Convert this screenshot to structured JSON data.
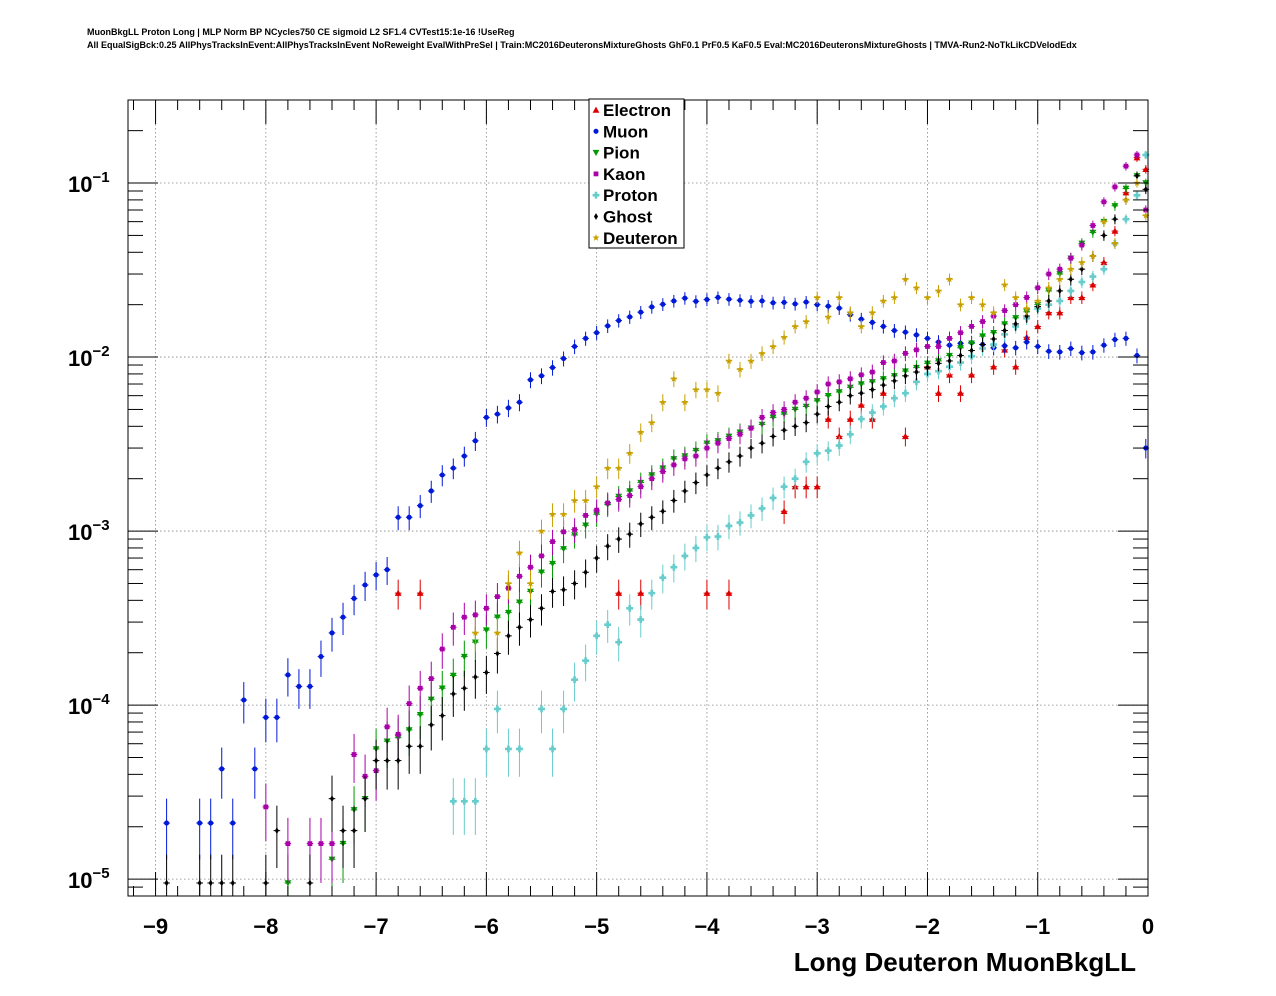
{
  "title_line1": "MuonBkgLL Proton Long | MLP Norm BP NCycles750 CE sigmoid L2 SF1.4 CVTest15:1e-16 !UseReg",
  "title_line2": "All EqualSigBck:0.25 AllPhysTracksInEvent:AllPhysTracksInEvent NoReweight EvalWithPreSel | Train:MC2016DeuteronsMixtureGhosts GhF0.1 PrF0.5 KaF0.5 Eval:MC2016DeuteronsMixtureGhosts | TMVA-Run2-NoTkLikCDVelodEdx",
  "chart_data": {
    "type": "scatter",
    "xlabel": "Long Deuteron MuonBkgLL",
    "ylabel": "",
    "xlim": [
      -9.25,
      0
    ],
    "ylim": [
      8e-06,
      0.3
    ],
    "yscale": "log",
    "grid": true,
    "legend_position": "top-center",
    "x_ticks": [
      {
        "v": -9,
        "label": "−9"
      },
      {
        "v": -8,
        "label": "−8"
      },
      {
        "v": -7,
        "label": "−7"
      },
      {
        "v": -6,
        "label": "−6"
      },
      {
        "v": -5,
        "label": "−5"
      },
      {
        "v": -4,
        "label": "−4"
      },
      {
        "v": -3,
        "label": "−3"
      },
      {
        "v": -2,
        "label": "−2"
      },
      {
        "v": -1,
        "label": "−1"
      },
      {
        "v": 0,
        "label": "0"
      }
    ],
    "y_ticks": [
      {
        "v": 1e-05,
        "base": "10",
        "exp": "−5"
      },
      {
        "v": 0.0001,
        "base": "10",
        "exp": "−4"
      },
      {
        "v": 0.001,
        "base": "10",
        "exp": "−3"
      },
      {
        "v": 0.01,
        "base": "10",
        "exp": "−2"
      },
      {
        "v": 0.1,
        "base": "10",
        "exp": "−1"
      }
    ],
    "series": [
      {
        "name": "Electron",
        "color": "#dd0000",
        "marker": "triangle-up",
        "x": [
          -6.8,
          -6.6,
          -4.8,
          -4.6,
          -4.0,
          -3.8,
          -3.3,
          -3.2,
          -3.1,
          -3.0,
          -2.9,
          -2.8,
          -2.7,
          -2.6,
          -2.5,
          -2.4,
          -2.2,
          -2.0,
          -1.9,
          -1.8,
          -1.7,
          -1.6,
          -1.4,
          -1.3,
          -1.2,
          -1.1,
          -1.0,
          -0.9,
          -0.8,
          -0.7,
          -0.6,
          -0.5,
          -0.4,
          -0.3,
          -0.2,
          -0.1,
          -0.02
        ],
        "y": [
          0.00044,
          0.00044,
          0.00044,
          0.00044,
          0.00044,
          0.00044,
          0.0013,
          0.0018,
          0.0018,
          0.0018,
          0.0044,
          0.0035,
          0.0044,
          0.0053,
          0.0044,
          0.0062,
          0.0035,
          0.0088,
          0.0062,
          0.0079,
          0.0062,
          0.0079,
          0.0088,
          0.011,
          0.0088,
          0.013,
          0.015,
          0.018,
          0.018,
          0.022,
          0.022,
          0.026,
          0.035,
          0.053,
          0.088,
          0.14,
          0.12
        ]
      },
      {
        "name": "Muon",
        "color": "#0018d8",
        "marker": "circle",
        "x": [
          -8.9,
          -8.6,
          -8.5,
          -8.4,
          -8.3,
          -8.2,
          -8.1,
          -8.0,
          -7.9,
          -7.8,
          -7.7,
          -7.6,
          -7.5,
          -7.4,
          -7.3,
          -7.2,
          -7.1,
          -7.0,
          -6.9,
          -6.8,
          -6.7,
          -6.6,
          -6.5,
          -6.4,
          -6.3,
          -6.2,
          -6.1,
          -6.0,
          -5.9,
          -5.8,
          -5.7,
          -5.6,
          -5.5,
          -5.4,
          -5.3,
          -5.2,
          -5.1,
          -5.0,
          -4.9,
          -4.8,
          -4.7,
          -4.6,
          -4.5,
          -4.4,
          -4.3,
          -4.2,
          -4.1,
          -4.0,
          -3.9,
          -3.8,
          -3.7,
          -3.6,
          -3.5,
          -3.4,
          -3.3,
          -3.2,
          -3.1,
          -3.0,
          -2.9,
          -2.8,
          -2.7,
          -2.6,
          -2.5,
          -2.4,
          -2.3,
          -2.2,
          -2.1,
          -2.0,
          -1.9,
          -1.8,
          -1.7,
          -1.6,
          -1.5,
          -1.4,
          -1.3,
          -1.2,
          -1.1,
          -1.0,
          -0.9,
          -0.8,
          -0.7,
          -0.6,
          -0.5,
          -0.4,
          -0.3,
          -0.2,
          -0.1,
          -0.02
        ],
        "y": [
          2.1e-05,
          2.1e-05,
          2.1e-05,
          4.3e-05,
          2.1e-05,
          0.000107,
          4.3e-05,
          8.5e-05,
          8.5e-05,
          0.000149,
          0.000128,
          0.000128,
          0.00019,
          0.00026,
          0.00032,
          0.00041,
          0.00049,
          0.00056,
          0.0006,
          0.0012,
          0.0012,
          0.0014,
          0.0017,
          0.0021,
          0.0023,
          0.0027,
          0.0033,
          0.0045,
          0.0047,
          0.0051,
          0.0055,
          0.0074,
          0.0078,
          0.0087,
          0.0098,
          0.0115,
          0.0128,
          0.0138,
          0.0151,
          0.0162,
          0.017,
          0.0181,
          0.0194,
          0.0201,
          0.021,
          0.0218,
          0.0209,
          0.0214,
          0.022,
          0.0215,
          0.0212,
          0.0209,
          0.021,
          0.0205,
          0.0206,
          0.0202,
          0.0207,
          0.02,
          0.0196,
          0.0191,
          0.0175,
          0.0165,
          0.0158,
          0.015,
          0.0142,
          0.0139,
          0.0134,
          0.0128,
          0.0122,
          0.0117,
          0.012,
          0.0121,
          0.0118,
          0.0113,
          0.0116,
          0.0113,
          0.0122,
          0.0115,
          0.0108,
          0.0107,
          0.0112,
          0.0106,
          0.0107,
          0.0117,
          0.0126,
          0.0128,
          0.0102,
          0.003
        ]
      },
      {
        "name": "Pion",
        "color": "#009900",
        "marker": "triangle-down",
        "x": [
          -7.8,
          -7.4,
          -7.3,
          -7.2,
          -7.1,
          -7.0,
          -6.9,
          -6.8,
          -6.7,
          -6.6,
          -6.5,
          -6.4,
          -6.3,
          -6.2,
          -6.1,
          -6.0,
          -5.9,
          -5.8,
          -5.7,
          -5.6,
          -5.5,
          -5.4,
          -5.3,
          -5.2,
          -5.1,
          -5.0,
          -4.9,
          -4.8,
          -4.7,
          -4.6,
          -4.5,
          -4.4,
          -4.3,
          -4.2,
          -4.1,
          -4.0,
          -3.9,
          -3.8,
          -3.7,
          -3.6,
          -3.5,
          -3.4,
          -3.3,
          -3.2,
          -3.1,
          -3.0,
          -2.9,
          -2.8,
          -2.7,
          -2.6,
          -2.5,
          -2.4,
          -2.3,
          -2.2,
          -2.1,
          -2.0,
          -1.9,
          -1.8,
          -1.7,
          -1.6,
          -1.5,
          -1.4,
          -1.3,
          -1.2,
          -1.1,
          -1.0,
          -0.9,
          -0.8,
          -0.7,
          -0.6,
          -0.5,
          -0.4,
          -0.3,
          -0.2,
          -0.1,
          -0.02
        ],
        "y": [
          9.5e-06,
          1.3e-05,
          1.6e-05,
          2.5e-05,
          2.9e-05,
          5.6e-05,
          6.2e-05,
          6.5e-05,
          7.2e-05,
          8.8e-05,
          0.000108,
          0.000125,
          0.000148,
          0.00019,
          0.00023,
          0.00027,
          0.00032,
          0.00034,
          0.00039,
          0.00045,
          0.00058,
          0.00065,
          0.00079,
          0.00095,
          0.00108,
          0.00125,
          0.00142,
          0.00158,
          0.0017,
          0.0019,
          0.0021,
          0.0023,
          0.0026,
          0.0027,
          0.0029,
          0.0032,
          0.0033,
          0.0035,
          0.0037,
          0.0039,
          0.0041,
          0.0045,
          0.0047,
          0.005,
          0.0052,
          0.0056,
          0.006,
          0.0063,
          0.0067,
          0.007,
          0.0072,
          0.0075,
          0.0078,
          0.0083,
          0.0087,
          0.0092,
          0.0095,
          0.0102,
          0.0113,
          0.012,
          0.0132,
          0.0138,
          0.0155,
          0.0168,
          0.0182,
          0.02,
          0.024,
          0.03,
          0.037,
          0.045,
          0.052,
          0.06,
          0.074,
          0.093,
          0.11,
          0.1
        ]
      },
      {
        "name": "Kaon",
        "color": "#aa00aa",
        "marker": "square",
        "x": [
          -8.0,
          -7.8,
          -7.6,
          -7.5,
          -7.4,
          -7.2,
          -7.1,
          -7.0,
          -6.9,
          -6.8,
          -6.7,
          -6.6,
          -6.5,
          -6.4,
          -6.3,
          -6.2,
          -6.1,
          -6.0,
          -5.9,
          -5.8,
          -5.7,
          -5.6,
          -5.5,
          -5.4,
          -5.3,
          -5.2,
          -5.1,
          -5.0,
          -4.9,
          -4.8,
          -4.7,
          -4.6,
          -4.5,
          -4.4,
          -4.3,
          -4.2,
          -4.1,
          -4.0,
          -3.9,
          -3.8,
          -3.7,
          -3.6,
          -3.5,
          -3.4,
          -3.3,
          -3.2,
          -3.1,
          -3.0,
          -2.9,
          -2.8,
          -2.7,
          -2.6,
          -2.5,
          -2.4,
          -2.3,
          -2.2,
          -2.1,
          -2.0,
          -1.9,
          -1.8,
          -1.7,
          -1.6,
          -1.5,
          -1.4,
          -1.3,
          -1.2,
          -1.1,
          -1.0,
          -0.9,
          -0.8,
          -0.7,
          -0.6,
          -0.5,
          -0.4,
          -0.3,
          -0.2,
          -0.1,
          -0.02
        ],
        "y": [
          2.6e-05,
          1.6e-05,
          1.6e-05,
          1.6e-05,
          1.6e-05,
          5.2e-05,
          3.9e-05,
          4.2e-05,
          7.5e-05,
          6.8e-05,
          0.000102,
          0.000125,
          0.000142,
          0.00021,
          0.00028,
          0.00032,
          0.00033,
          0.00036,
          0.00042,
          0.00047,
          0.00055,
          0.00062,
          0.00072,
          0.00087,
          0.00099,
          0.00102,
          0.00123,
          0.00132,
          0.00145,
          0.00152,
          0.0016,
          0.0018,
          0.002,
          0.0022,
          0.0024,
          0.0026,
          0.0027,
          0.003,
          0.0032,
          0.0034,
          0.0036,
          0.0039,
          0.0045,
          0.0048,
          0.005,
          0.0055,
          0.0058,
          0.0063,
          0.007,
          0.0072,
          0.0075,
          0.0079,
          0.0082,
          0.0093,
          0.0095,
          0.0105,
          0.011,
          0.0115,
          0.0115,
          0.0128,
          0.0138,
          0.015,
          0.016,
          0.0172,
          0.0185,
          0.02,
          0.022,
          0.025,
          0.03,
          0.032,
          0.037,
          0.044,
          0.057,
          0.078,
          0.095,
          0.125,
          0.145,
          0.07
        ]
      },
      {
        "name": "Proton",
        "color": "#66cccc",
        "marker": "plus",
        "x": [
          -6.3,
          -6.2,
          -6.1,
          -6.0,
          -5.9,
          -5.8,
          -5.7,
          -5.5,
          -5.4,
          -5.3,
          -5.2,
          -5.1,
          -5.0,
          -4.9,
          -4.8,
          -4.7,
          -4.6,
          -4.5,
          -4.4,
          -4.3,
          -4.2,
          -4.1,
          -4.0,
          -3.9,
          -3.8,
          -3.7,
          -3.6,
          -3.5,
          -3.4,
          -3.3,
          -3.2,
          -3.1,
          -3.0,
          -2.9,
          -2.8,
          -2.7,
          -2.6,
          -2.5,
          -2.4,
          -2.3,
          -2.2,
          -2.1,
          -2.0,
          -1.9,
          -1.8,
          -1.7,
          -1.6,
          -1.5,
          -1.4,
          -1.3,
          -1.2,
          -1.1,
          -1.0,
          -0.9,
          -0.8,
          -0.7,
          -0.6,
          -0.5,
          -0.4,
          -0.3,
          -0.2,
          -0.1,
          -0.02
        ],
        "y": [
          2.8e-05,
          2.8e-05,
          2.8e-05,
          5.6e-05,
          9.5e-05,
          5.6e-05,
          5.6e-05,
          9.5e-05,
          5.6e-05,
          9.5e-05,
          0.00014,
          0.00018,
          0.00025,
          0.00029,
          0.00023,
          0.00036,
          0.00031,
          0.00044,
          0.00054,
          0.00062,
          0.00072,
          0.0008,
          0.00092,
          0.00093,
          0.00107,
          0.00112,
          0.00123,
          0.00135,
          0.00155,
          0.0018,
          0.002,
          0.0025,
          0.0028,
          0.0029,
          0.0031,
          0.0036,
          0.0044,
          0.0048,
          0.0052,
          0.0058,
          0.0062,
          0.0072,
          0.008,
          0.0083,
          0.0088,
          0.0093,
          0.0101,
          0.0112,
          0.0118,
          0.0135,
          0.015,
          0.0167,
          0.019,
          0.02,
          0.021,
          0.024,
          0.027,
          0.029,
          0.032,
          0.045,
          0.062,
          0.085,
          0.145
        ]
      },
      {
        "name": "Ghost",
        "color": "#000000",
        "marker": "diamond",
        "x": [
          -8.9,
          -8.6,
          -8.5,
          -8.4,
          -8.3,
          -8.0,
          -7.9,
          -7.6,
          -7.4,
          -7.3,
          -7.2,
          -7.1,
          -7.0,
          -6.9,
          -6.8,
          -6.7,
          -6.6,
          -6.5,
          -6.4,
          -6.3,
          -6.2,
          -6.1,
          -6.0,
          -5.9,
          -5.8,
          -5.7,
          -5.6,
          -5.5,
          -5.4,
          -5.3,
          -5.2,
          -5.1,
          -5.0,
          -4.9,
          -4.8,
          -4.7,
          -4.6,
          -4.5,
          -4.4,
          -4.3,
          -4.2,
          -4.1,
          -4.0,
          -3.9,
          -3.8,
          -3.7,
          -3.6,
          -3.5,
          -3.4,
          -3.3,
          -3.2,
          -3.1,
          -3.0,
          -2.9,
          -2.8,
          -2.7,
          -2.6,
          -2.5,
          -2.4,
          -2.3,
          -2.2,
          -2.1,
          -2.0,
          -1.9,
          -1.8,
          -1.7,
          -1.6,
          -1.5,
          -1.4,
          -1.3,
          -1.2,
          -1.1,
          -1.0,
          -0.9,
          -0.8,
          -0.7,
          -0.6,
          -0.5,
          -0.4,
          -0.3,
          -0.2,
          -0.1,
          -0.02
        ],
        "y": [
          9.5e-06,
          9.5e-06,
          9.5e-06,
          9.5e-06,
          9.5e-06,
          9.5e-06,
          1.9e-05,
          9.5e-06,
          2.9e-05,
          1.9e-05,
          1.9e-05,
          2.9e-05,
          4.8e-05,
          4.8e-05,
          4.8e-05,
          5.8e-05,
          5.8e-05,
          7.7e-05,
          8.7e-05,
          0.000116,
          0.000125,
          0.000145,
          0.000154,
          0.000198,
          0.00025,
          0.00028,
          0.00031,
          0.00036,
          0.00045,
          0.00046,
          0.0005,
          0.00058,
          0.0007,
          0.00082,
          0.0009,
          0.00096,
          0.0011,
          0.0012,
          0.0013,
          0.0015,
          0.0017,
          0.0019,
          0.0021,
          0.0023,
          0.0025,
          0.0027,
          0.003,
          0.0032,
          0.0035,
          0.0038,
          0.004,
          0.0042,
          0.0047,
          0.0052,
          0.0055,
          0.006,
          0.0062,
          0.0065,
          0.0069,
          0.0073,
          0.0078,
          0.0082,
          0.0087,
          0.0092,
          0.0095,
          0.0102,
          0.0109,
          0.0118,
          0.0127,
          0.0142,
          0.0155,
          0.0172,
          0.0195,
          0.021,
          0.024,
          0.028,
          0.032,
          0.038,
          0.05,
          0.062,
          0.08,
          0.11,
          0.092
        ]
      },
      {
        "name": "Deuteron",
        "color": "#c8a000",
        "marker": "star",
        "x": [
          -6.1,
          -5.9,
          -5.8,
          -5.7,
          -5.6,
          -5.5,
          -5.4,
          -5.3,
          -5.2,
          -5.1,
          -5.0,
          -4.9,
          -4.8,
          -4.7,
          -4.6,
          -4.5,
          -4.4,
          -4.3,
          -4.2,
          -4.1,
          -4.0,
          -3.9,
          -3.8,
          -3.7,
          -3.6,
          -3.5,
          -3.4,
          -3.3,
          -3.2,
          -3.1,
          -3.0,
          -2.9,
          -2.8,
          -2.7,
          -2.6,
          -2.5,
          -2.4,
          -2.3,
          -2.2,
          -2.1,
          -2.0,
          -1.9,
          -1.8,
          -1.7,
          -1.6,
          -1.5,
          -1.4,
          -1.3,
          -1.2,
          -1.1,
          -1.0,
          -0.9,
          -0.8,
          -0.7,
          -0.6,
          -0.5,
          -0.4,
          -0.3,
          -0.2,
          -0.1,
          -0.02
        ],
        "y": [
          0.00026,
          0.00026,
          0.0005,
          0.00075,
          0.0005,
          0.001,
          0.00125,
          0.00125,
          0.0015,
          0.0015,
          0.0018,
          0.0023,
          0.0023,
          0.0028,
          0.0037,
          0.0042,
          0.0055,
          0.0075,
          0.0055,
          0.0065,
          0.0065,
          0.0062,
          0.0095,
          0.0085,
          0.0095,
          0.0105,
          0.0115,
          0.013,
          0.015,
          0.016,
          0.022,
          0.017,
          0.022,
          0.018,
          0.015,
          0.018,
          0.021,
          0.022,
          0.028,
          0.025,
          0.022,
          0.024,
          0.028,
          0.02,
          0.022,
          0.02,
          0.018,
          0.026,
          0.022,
          0.019,
          0.021,
          0.025,
          0.028,
          0.032,
          0.035,
          0.038,
          0.06,
          0.045,
          0.08,
          0.1,
          0.065
        ]
      }
    ]
  }
}
